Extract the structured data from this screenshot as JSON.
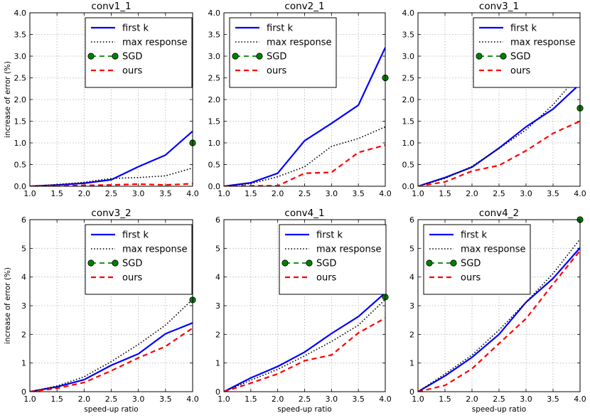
{
  "colors": {
    "first_k": "#0000ff",
    "max_response": "#000000",
    "sgd": "#008000",
    "ours": "#ff0000",
    "grid": "#b0b0b0"
  },
  "chart_data": [
    {
      "type": "line",
      "title": "conv1_1",
      "xlabel": "",
      "ylabel": "increase of error (%)",
      "xlim": [
        1.0,
        4.0
      ],
      "ylim": [
        0.0,
        4.0
      ],
      "xticks": [
        "1.0",
        "1.5",
        "2.0",
        "2.5",
        "3.0",
        "3.5",
        "4.0"
      ],
      "yticks": [
        "0.0",
        "0.5",
        "1.0",
        "1.5",
        "2.0",
        "2.5",
        "3.0",
        "3.5",
        "4.0"
      ],
      "grid": true,
      "legend_position": "top-right",
      "x": [
        1.0,
        1.5,
        2.0,
        2.5,
        3.0,
        3.5,
        4.0
      ],
      "series": [
        {
          "name": "first k",
          "style": "solid",
          "values": [
            0.0,
            0.03,
            0.07,
            0.15,
            0.45,
            0.72,
            1.27
          ]
        },
        {
          "name": "max response",
          "style": "dotted",
          "values": [
            0.0,
            0.04,
            0.09,
            0.18,
            0.2,
            0.24,
            0.42
          ]
        },
        {
          "name": "SGD",
          "style": "dashed-dot",
          "x": [
            4.0
          ],
          "values": [
            1.0
          ]
        },
        {
          "name": "ours",
          "style": "dashed",
          "values": [
            0.0,
            0.01,
            0.02,
            0.03,
            0.05,
            0.03,
            0.06
          ]
        }
      ]
    },
    {
      "type": "line",
      "title": "conv2_1",
      "xlabel": "",
      "ylabel": "",
      "xlim": [
        1.0,
        4.0
      ],
      "ylim": [
        0.0,
        4.0
      ],
      "xticks": [
        "1.0",
        "1.5",
        "2.0",
        "2.5",
        "3.0",
        "3.5",
        "4.0"
      ],
      "yticks": [
        "0.0",
        "0.5",
        "1.0",
        "1.5",
        "2.0",
        "2.5",
        "3.0",
        "3.5",
        "4.0"
      ],
      "grid": true,
      "legend_position": "top-left",
      "x": [
        1.0,
        1.5,
        2.0,
        2.5,
        3.0,
        3.5,
        4.0
      ],
      "series": [
        {
          "name": "first k",
          "style": "solid",
          "values": [
            0.0,
            0.08,
            0.3,
            1.05,
            1.45,
            1.87,
            3.2
          ]
        },
        {
          "name": "max response",
          "style": "dotted",
          "values": [
            0.0,
            0.06,
            0.22,
            0.45,
            0.92,
            1.1,
            1.37
          ]
        },
        {
          "name": "SGD",
          "style": "dashed-dot",
          "x": [
            4.0
          ],
          "values": [
            2.5
          ]
        },
        {
          "name": "ours",
          "style": "dashed",
          "values": [
            0.0,
            0.01,
            0.01,
            0.3,
            0.32,
            0.78,
            0.95
          ]
        }
      ]
    },
    {
      "type": "line",
      "title": "conv3_1",
      "xlabel": "",
      "ylabel": "",
      "xlim": [
        1.0,
        4.0
      ],
      "ylim": [
        0.0,
        4.0
      ],
      "xticks": [
        "1.0",
        "1.5",
        "2.0",
        "2.5",
        "3.0",
        "3.5",
        "4.0"
      ],
      "yticks": [
        "0.0",
        "0.5",
        "1.0",
        "1.5",
        "2.0",
        "2.5",
        "3.0",
        "3.5",
        "4.0"
      ],
      "grid": true,
      "legend_position": "top-right",
      "x": [
        1.0,
        1.5,
        2.0,
        2.5,
        3.0,
        3.5,
        4.0
      ],
      "series": [
        {
          "name": "first k",
          "style": "solid",
          "values": [
            0.0,
            0.2,
            0.44,
            0.88,
            1.37,
            1.78,
            2.36
          ]
        },
        {
          "name": "max response",
          "style": "dotted",
          "values": [
            0.0,
            0.18,
            0.46,
            0.87,
            1.3,
            1.88,
            2.6
          ]
        },
        {
          "name": "SGD",
          "style": "dashed-dot",
          "x": [
            4.0
          ],
          "values": [
            1.8
          ]
        },
        {
          "name": "ours",
          "style": "dashed",
          "values": [
            0.0,
            0.1,
            0.35,
            0.48,
            0.82,
            1.22,
            1.5
          ]
        }
      ]
    },
    {
      "type": "line",
      "title": "conv3_2",
      "xlabel": "speed-up ratio",
      "ylabel": "increase of error (%)",
      "xlim": [
        1.0,
        4.0
      ],
      "ylim": [
        0,
        6
      ],
      "xticks": [
        "1.0",
        "1.5",
        "2.0",
        "2.5",
        "3.0",
        "3.5",
        "4.0"
      ],
      "yticks": [
        "0",
        "1",
        "2",
        "3",
        "4",
        "5",
        "6"
      ],
      "grid": true,
      "legend_position": "top-right",
      "x": [
        1.0,
        1.5,
        2.0,
        2.5,
        3.0,
        3.5,
        4.0
      ],
      "series": [
        {
          "name": "first k",
          "style": "solid",
          "values": [
            0.0,
            0.17,
            0.42,
            0.92,
            1.32,
            2.02,
            2.4
          ]
        },
        {
          "name": "max response",
          "style": "dotted",
          "values": [
            0.0,
            0.2,
            0.52,
            1.05,
            1.65,
            2.32,
            3.22
          ]
        },
        {
          "name": "SGD",
          "style": "dashed-dot",
          "x": [
            4.0
          ],
          "values": [
            3.2
          ]
        },
        {
          "name": "ours",
          "style": "dashed",
          "values": [
            0.0,
            0.12,
            0.32,
            0.73,
            1.18,
            1.58,
            2.22
          ]
        }
      ]
    },
    {
      "type": "line",
      "title": "conv4_1",
      "xlabel": "speed-up ratio",
      "ylabel": "",
      "xlim": [
        1.0,
        4.0
      ],
      "ylim": [
        0,
        6
      ],
      "xticks": [
        "1.0",
        "1.5",
        "2.0",
        "2.5",
        "3.0",
        "3.5",
        "4.0"
      ],
      "yticks": [
        "0",
        "1",
        "2",
        "3",
        "4",
        "5",
        "6"
      ],
      "grid": true,
      "legend_position": "top-right",
      "x": [
        1.0,
        1.5,
        2.0,
        2.5,
        3.0,
        3.5,
        4.0
      ],
      "series": [
        {
          "name": "first k",
          "style": "solid",
          "values": [
            0.0,
            0.48,
            0.88,
            1.38,
            2.03,
            2.62,
            3.45
          ]
        },
        {
          "name": "max response",
          "style": "dotted",
          "values": [
            0.0,
            0.4,
            0.78,
            1.25,
            1.75,
            2.32,
            3.22
          ]
        },
        {
          "name": "SGD",
          "style": "dashed-dot",
          "x": [
            4.0
          ],
          "values": [
            3.3
          ]
        },
        {
          "name": "ours",
          "style": "dashed",
          "values": [
            0.0,
            0.3,
            0.62,
            1.08,
            1.28,
            2.05,
            2.57
          ]
        }
      ]
    },
    {
      "type": "line",
      "title": "conv4_2",
      "xlabel": "speed-up ratio",
      "ylabel": "",
      "xlim": [
        1.0,
        4.0
      ],
      "ylim": [
        0,
        6
      ],
      "xticks": [
        "1.0",
        "1.5",
        "2.0",
        "2.5",
        "3.0",
        "3.5",
        "4.0"
      ],
      "yticks": [
        "0",
        "1",
        "2",
        "3",
        "4",
        "5",
        "6"
      ],
      "grid": true,
      "legend_position": "top-right",
      "x": [
        1.0,
        1.5,
        2.0,
        2.5,
        3.0,
        3.5,
        4.0
      ],
      "series": [
        {
          "name": "first k",
          "style": "solid",
          "values": [
            0.0,
            0.55,
            1.2,
            2.0,
            3.12,
            3.95,
            5.02
          ]
        },
        {
          "name": "max response",
          "style": "dotted",
          "values": [
            0.0,
            0.62,
            1.28,
            2.15,
            3.12,
            4.12,
            5.32
          ]
        },
        {
          "name": "SGD",
          "style": "dashed-dot",
          "x": [
            4.0
          ],
          "values": [
            6.0
          ]
        },
        {
          "name": "ours",
          "style": "dashed",
          "values": [
            0.0,
            0.22,
            0.8,
            1.68,
            2.55,
            3.75,
            4.92
          ]
        }
      ]
    }
  ]
}
